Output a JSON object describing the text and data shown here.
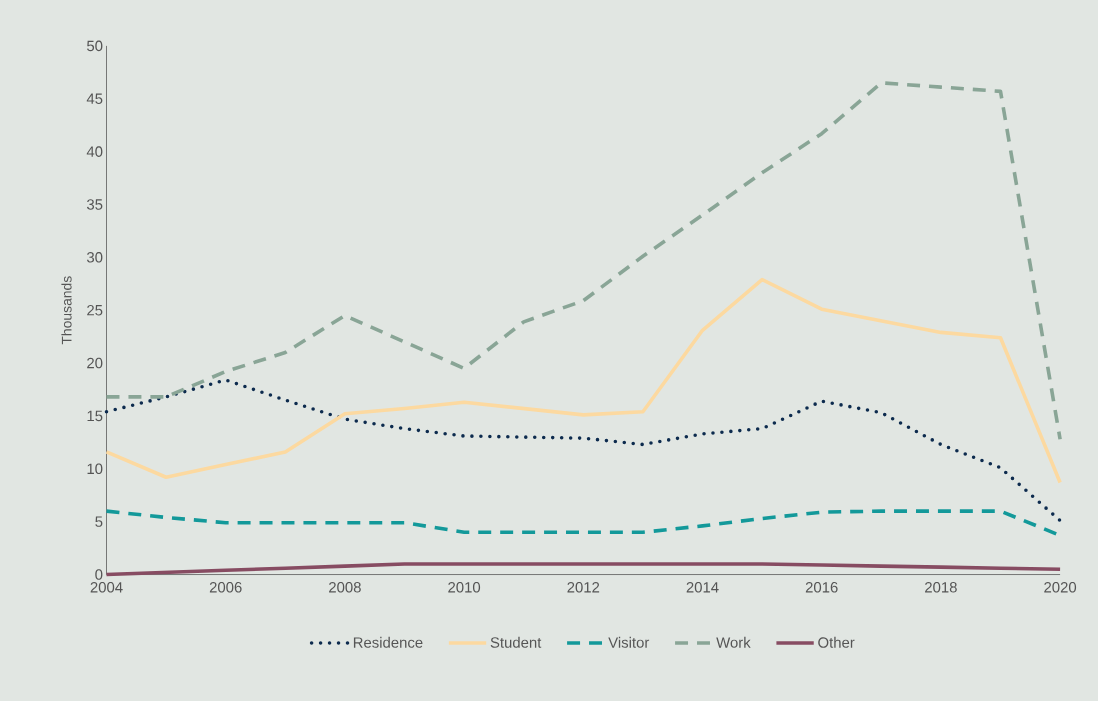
{
  "chart_data": {
    "type": "line",
    "ylabel": "Thousands",
    "x": [
      2004,
      2005,
      2006,
      2007,
      2008,
      2009,
      2010,
      2011,
      2012,
      2013,
      2014,
      2015,
      2016,
      2017,
      2018,
      2019,
      2020
    ],
    "xlim": [
      2004,
      2020
    ],
    "xticks": [
      2004,
      2006,
      2008,
      2010,
      2012,
      2014,
      2016,
      2018,
      2020
    ],
    "ylim": [
      0,
      50
    ],
    "yticks": [
      0,
      5,
      10,
      15,
      20,
      25,
      30,
      35,
      40,
      45,
      50
    ],
    "grid": false,
    "legend": "bottom",
    "marker": "none",
    "series": [
      {
        "name": "Residence",
        "color": "#0d2b4e",
        "line_style": "dotted",
        "values": [
          15.4,
          16.8,
          18.4,
          16.5,
          14.7,
          13.8,
          13.1,
          13.0,
          12.9,
          12.3,
          13.3,
          13.8,
          16.4,
          15.3,
          12.3,
          10.1,
          5.1
        ]
      },
      {
        "name": "Student",
        "color": "#fcd9a0",
        "line_style": "solid",
        "values": [
          11.6,
          9.2,
          10.4,
          11.6,
          15.2,
          15.7,
          16.3,
          15.7,
          15.1,
          15.4,
          23.1,
          27.9,
          25.1,
          24.0,
          22.9,
          22.4,
          8.7
        ]
      },
      {
        "name": "Visitor",
        "color": "#13999a",
        "line_style": "dashed",
        "values": [
          6.0,
          5.4,
          4.9,
          4.9,
          4.9,
          4.9,
          4.0,
          4.0,
          4.0,
          4.0,
          4.6,
          5.3,
          5.9,
          6.0,
          6.0,
          6.0,
          3.7
        ]
      },
      {
        "name": "Work",
        "color": "#89a596",
        "line_style": "dashed",
        "values": [
          16.8,
          16.8,
          19.2,
          21.0,
          24.5,
          22.0,
          19.5,
          23.9,
          25.9,
          30.1,
          34.0,
          38.0,
          41.7,
          46.5,
          46.1,
          45.7,
          12.8
        ]
      },
      {
        "name": "Other",
        "color": "#874c62",
        "line_style": "solid",
        "values": [
          0.0,
          0.2,
          0.4,
          0.6,
          0.8,
          1.0,
          1.0,
          1.0,
          1.0,
          1.0,
          1.0,
          1.0,
          0.9,
          0.8,
          0.7,
          0.6,
          0.5
        ]
      }
    ]
  }
}
